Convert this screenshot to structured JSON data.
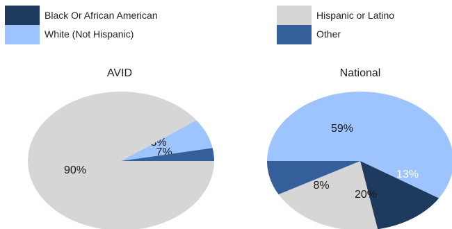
{
  "legend": [
    {
      "label": "Black Or African American",
      "color": "#1f3a5f"
    },
    {
      "label": "White (Not Hispanic)",
      "color": "#9ec4ff"
    },
    {
      "label": "Hispanic or Latino",
      "color": "#d6d6d6"
    },
    {
      "label": "Other",
      "color": "#345f9b"
    }
  ],
  "chart_data": [
    {
      "type": "pie",
      "title": "AVID",
      "slices": [
        {
          "category": "White (Not Hispanic)",
          "value": 7,
          "label": "7%"
        },
        {
          "category": "Other",
          "value": 3,
          "label": "3%"
        },
        {
          "category": "Hispanic or Latino",
          "value": 90,
          "label": "90%"
        }
      ]
    },
    {
      "type": "pie",
      "title": "National",
      "slices": [
        {
          "category": "White (Not Hispanic)",
          "value": 59,
          "label": "59%"
        },
        {
          "category": "Black Or African American",
          "value": 13,
          "label": "13%"
        },
        {
          "category": "Hispanic or Latino",
          "value": 20,
          "label": "20%"
        },
        {
          "category": "Other",
          "value": 8,
          "label": "8%"
        }
      ]
    }
  ]
}
